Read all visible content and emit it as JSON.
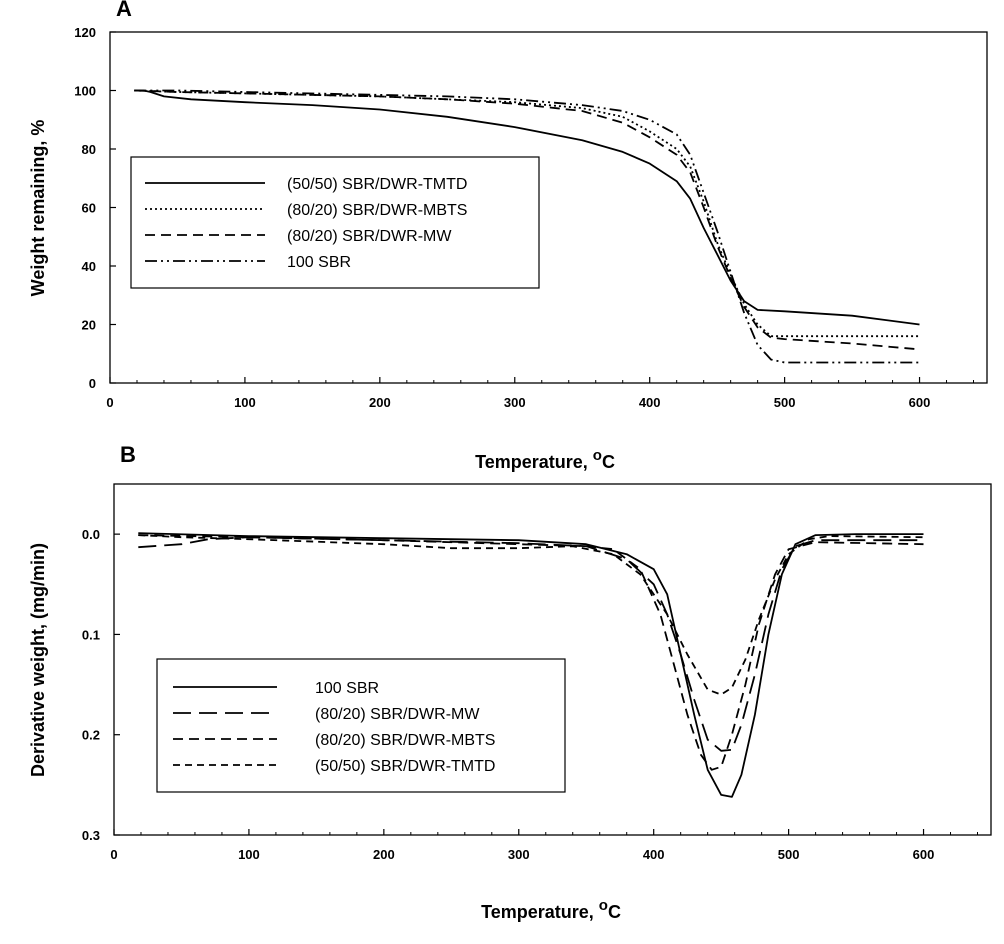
{
  "chart_data": [
    {
      "panel": "A",
      "type": "line",
      "xlabel": "Temperature, ",
      "xlabel_sup": "o",
      "xlabel_unit": "C",
      "ylabel": "Weight remaining, %",
      "xlim": [
        0,
        650
      ],
      "ylim": [
        0,
        120
      ],
      "xticks": [
        0,
        100,
        200,
        300,
        400,
        500,
        600
      ],
      "yticks": [
        0,
        20,
        40,
        60,
        80,
        100,
        120
      ],
      "grid": false,
      "legend_position": "center-left",
      "series": [
        {
          "name": "(50/50) SBR/DWR-TMTD",
          "dash": "solid",
          "points": [
            [
              18,
              100
            ],
            [
              25,
              100
            ],
            [
              30,
              99.5
            ],
            [
              40,
              98
            ],
            [
              60,
              97
            ],
            [
              100,
              96
            ],
            [
              150,
              95
            ],
            [
              200,
              93.5
            ],
            [
              250,
              91
            ],
            [
              300,
              87.5
            ],
            [
              350,
              83
            ],
            [
              380,
              79
            ],
            [
              400,
              75
            ],
            [
              420,
              69
            ],
            [
              430,
              63
            ],
            [
              440,
              53
            ],
            [
              450,
              44
            ],
            [
              460,
              35
            ],
            [
              470,
              28
            ],
            [
              480,
              25
            ],
            [
              500,
              24.5
            ],
            [
              550,
              23
            ],
            [
              600,
              20
            ]
          ]
        },
        {
          "name": "(80/20) SBR/DWR-MBTS",
          "dash": "dotted",
          "points": [
            [
              18,
              100
            ],
            [
              50,
              99.5
            ],
            [
              100,
              99
            ],
            [
              200,
              98
            ],
            [
              250,
              97
            ],
            [
              300,
              96
            ],
            [
              350,
              94
            ],
            [
              380,
              91
            ],
            [
              400,
              86
            ],
            [
              420,
              80
            ],
            [
              430,
              74
            ],
            [
              440,
              62
            ],
            [
              450,
              48
            ],
            [
              460,
              37
            ],
            [
              470,
              27
            ],
            [
              480,
              20
            ],
            [
              490,
              16
            ],
            [
              500,
              16
            ],
            [
              550,
              16
            ],
            [
              600,
              16
            ]
          ]
        },
        {
          "name": "(80/20) SBR/DWR-MW",
          "dash": "dashed",
          "points": [
            [
              18,
              100
            ],
            [
              50,
              99.5
            ],
            [
              100,
              99
            ],
            [
              200,
              98
            ],
            [
              250,
              97
            ],
            [
              300,
              95.5
            ],
            [
              350,
              93
            ],
            [
              380,
              89
            ],
            [
              400,
              84
            ],
            [
              420,
              78
            ],
            [
              430,
              72
            ],
            [
              440,
              60
            ],
            [
              450,
              47
            ],
            [
              460,
              36
            ],
            [
              470,
              26
            ],
            [
              480,
              19
            ],
            [
              490,
              15.5
            ],
            [
              500,
              15
            ],
            [
              550,
              13.5
            ],
            [
              600,
              11.5
            ]
          ]
        },
        {
          "name": "100 SBR",
          "dash": "dashdotdot",
          "points": [
            [
              18,
              100
            ],
            [
              50,
              100
            ],
            [
              100,
              99.5
            ],
            [
              200,
              98.5
            ],
            [
              250,
              98
            ],
            [
              300,
              97
            ],
            [
              350,
              95
            ],
            [
              380,
              93
            ],
            [
              400,
              90
            ],
            [
              420,
              85
            ],
            [
              430,
              78
            ],
            [
              440,
              65
            ],
            [
              450,
              52
            ],
            [
              460,
              38
            ],
            [
              470,
              24
            ],
            [
              480,
              13
            ],
            [
              490,
              8
            ],
            [
              500,
              7
            ],
            [
              550,
              7
            ],
            [
              600,
              7
            ]
          ]
        }
      ]
    },
    {
      "panel": "B",
      "type": "line",
      "xlabel": "Temperature, ",
      "xlabel_sup": "o",
      "xlabel_unit": "C",
      "ylabel": "Derivative weight, (mg/min)",
      "xlim": [
        0,
        650
      ],
      "ylim": [
        0.3,
        -0.05
      ],
      "xticks": [
        0,
        100,
        200,
        300,
        400,
        500,
        600
      ],
      "yticks": [
        0.0,
        0.1,
        0.2,
        0.3
      ],
      "ytick_labels": [
        "0.0",
        "0.1",
        "0.2",
        "0.3"
      ],
      "grid": false,
      "legend_position": "bottom-left",
      "series": [
        {
          "name": "100 SBR",
          "dash": "solid",
          "points": [
            [
              18,
              -0.001
            ],
            [
              100,
              0.002
            ],
            [
              200,
              0.004
            ],
            [
              300,
              0.006
            ],
            [
              350,
              0.01
            ],
            [
              380,
              0.02
            ],
            [
              400,
              0.035
            ],
            [
              410,
              0.06
            ],
            [
              420,
              0.12
            ],
            [
              430,
              0.18
            ],
            [
              440,
              0.235
            ],
            [
              450,
              0.26
            ],
            [
              458,
              0.262
            ],
            [
              465,
              0.24
            ],
            [
              475,
              0.18
            ],
            [
              485,
              0.1
            ],
            [
              495,
              0.04
            ],
            [
              505,
              0.01
            ],
            [
              520,
              0.001
            ],
            [
              550,
              0.0
            ],
            [
              600,
              0.0
            ]
          ]
        },
        {
          "name": "(80/20) SBR/DWR-MW",
          "dash": "longdash",
          "points": [
            [
              18,
              0.013
            ],
            [
              50,
              0.01
            ],
            [
              70,
              0.005
            ],
            [
              100,
              0.003
            ],
            [
              200,
              0.006
            ],
            [
              300,
              0.009
            ],
            [
              350,
              0.012
            ],
            [
              380,
              0.025
            ],
            [
              400,
              0.05
            ],
            [
              410,
              0.08
            ],
            [
              420,
              0.12
            ],
            [
              430,
              0.165
            ],
            [
              440,
              0.205
            ],
            [
              450,
              0.216
            ],
            [
              458,
              0.215
            ],
            [
              465,
              0.19
            ],
            [
              475,
              0.14
            ],
            [
              485,
              0.08
            ],
            [
              495,
              0.035
            ],
            [
              505,
              0.012
            ],
            [
              520,
              0.006
            ],
            [
              600,
              0.006
            ]
          ]
        },
        {
          "name": "(80/20) SBR/DWR-MBTS",
          "dash": "dashed",
          "points": [
            [
              18,
              0.001
            ],
            [
              100,
              0.003
            ],
            [
              200,
              0.006
            ],
            [
              300,
              0.01
            ],
            [
              350,
              0.012
            ],
            [
              370,
              0.015
            ],
            [
              390,
              0.035
            ],
            [
              405,
              0.08
            ],
            [
              415,
              0.13
            ],
            [
              425,
              0.18
            ],
            [
              435,
              0.22
            ],
            [
              443,
              0.235
            ],
            [
              450,
              0.232
            ],
            [
              458,
              0.2
            ],
            [
              468,
              0.15
            ],
            [
              478,
              0.09
            ],
            [
              490,
              0.04
            ],
            [
              500,
              0.015
            ],
            [
              520,
              0.008
            ],
            [
              600,
              0.01
            ]
          ]
        },
        {
          "name": "(50/50) SBR/DWR-TMTD",
          "dash": "shortdash",
          "points": [
            [
              18,
              0.001
            ],
            [
              50,
              0.003
            ],
            [
              100,
              0.005
            ],
            [
              200,
              0.01
            ],
            [
              250,
              0.014
            ],
            [
              300,
              0.014
            ],
            [
              340,
              0.012
            ],
            [
              370,
              0.02
            ],
            [
              390,
              0.04
            ],
            [
              410,
              0.08
            ],
            [
              425,
              0.12
            ],
            [
              440,
              0.155
            ],
            [
              450,
              0.16
            ],
            [
              458,
              0.153
            ],
            [
              468,
              0.125
            ],
            [
              478,
              0.085
            ],
            [
              490,
              0.045
            ],
            [
              500,
              0.02
            ],
            [
              515,
              0.005
            ],
            [
              530,
              0.002
            ],
            [
              600,
              0.003
            ]
          ]
        }
      ]
    }
  ]
}
